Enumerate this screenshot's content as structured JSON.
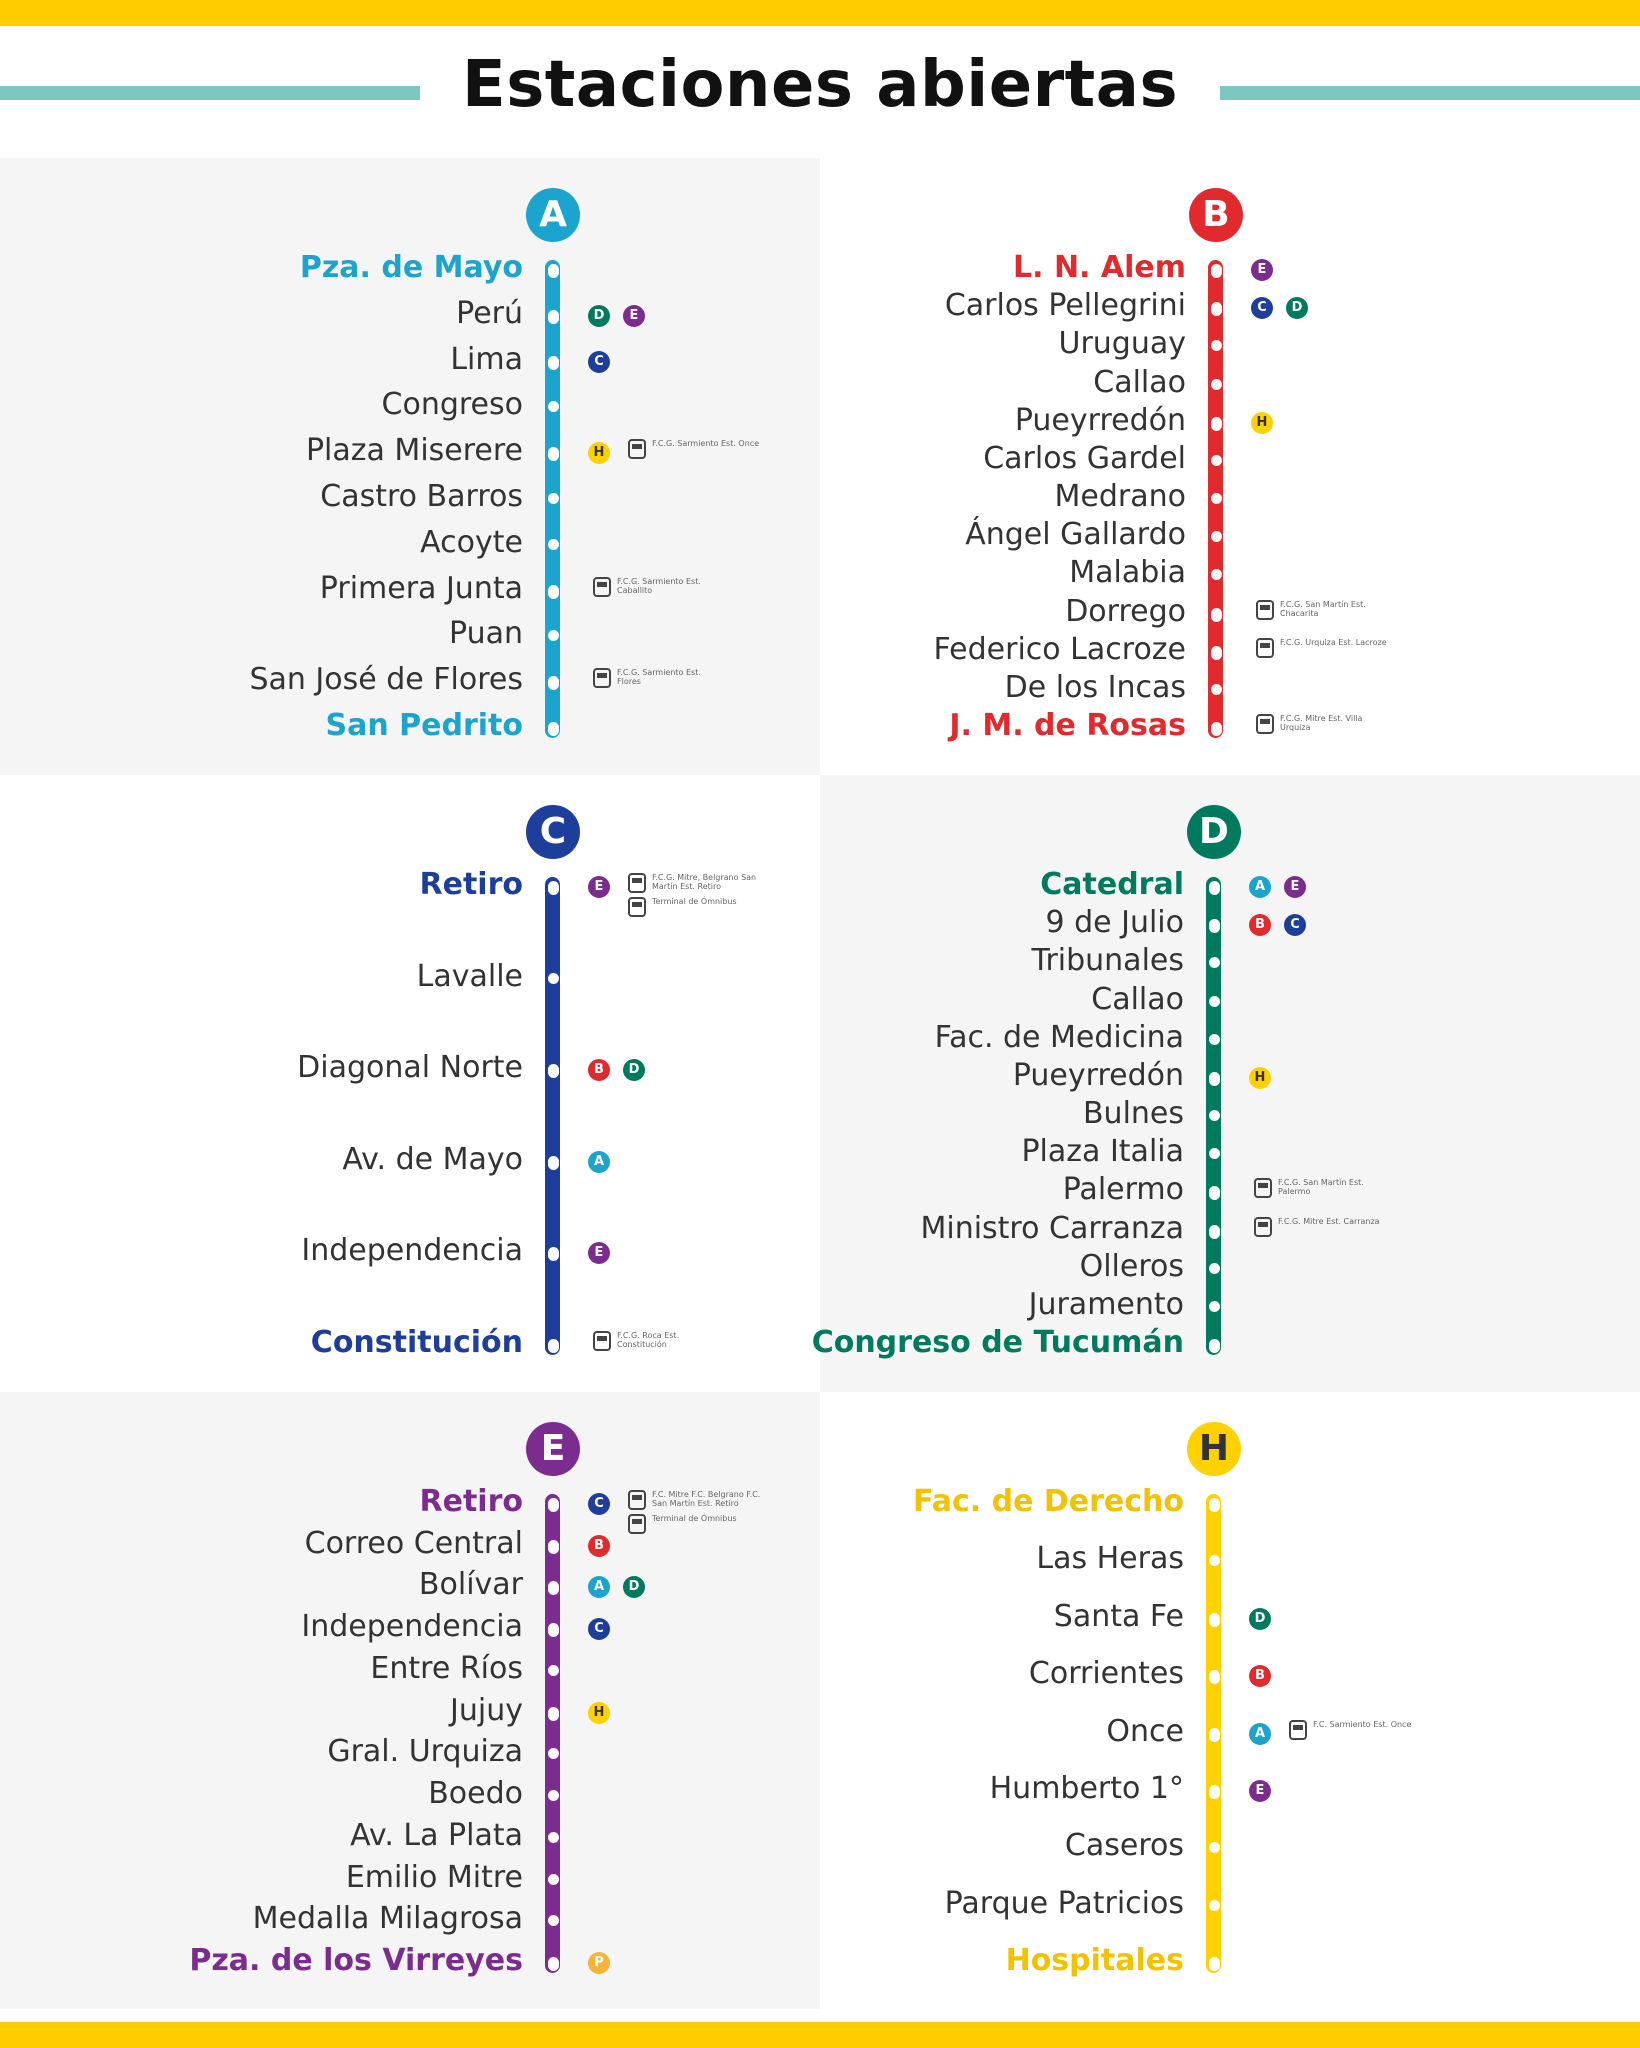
{
  "title": "Estaciones abiertas",
  "colors": {
    "yellow_bar": "#FFCD00",
    "rule": "#7CC8C0",
    "A": "#1AA4CE",
    "B": "#E12A2E",
    "C": "#1E3E9B",
    "D": "#007A5E",
    "E": "#7B2C8E",
    "H": "#FFD100",
    "P": "#F6B33A"
  },
  "lines": [
    {
      "id": "A",
      "badge": "A",
      "stations": [
        {
          "name": "Pza. de Mayo",
          "terminal": true
        },
        {
          "name": "Perú",
          "transfers": [
            "D",
            "E"
          ]
        },
        {
          "name": "Lima",
          "transfers": [
            "C"
          ]
        },
        {
          "name": "Congreso"
        },
        {
          "name": "Plaza Miserere",
          "transfers": [
            "H"
          ],
          "train": "F.C.G. Sarmiento Est. Once"
        },
        {
          "name": "Castro Barros"
        },
        {
          "name": "Acoyte"
        },
        {
          "name": "Primera Junta",
          "train": "F.C.G. Sarmiento Est. Caballito"
        },
        {
          "name": "Puan"
        },
        {
          "name": "San José de Flores",
          "train": "F.C.G. Sarmiento Est. Flores"
        },
        {
          "name": "San Pedrito",
          "terminal": true
        }
      ]
    },
    {
      "id": "B",
      "badge": "B",
      "stations": [
        {
          "name": "L. N. Alem",
          "terminal": true,
          "transfers": [
            "E"
          ]
        },
        {
          "name": "Carlos Pellegrini",
          "transfers": [
            "C",
            "D"
          ]
        },
        {
          "name": "Uruguay"
        },
        {
          "name": "Callao"
        },
        {
          "name": "Pueyrredón",
          "transfers": [
            "H"
          ]
        },
        {
          "name": "Carlos Gardel"
        },
        {
          "name": "Medrano"
        },
        {
          "name": "Ángel Gallardo"
        },
        {
          "name": "Malabia"
        },
        {
          "name": "Dorrego",
          "train": "F.C.G. San Martín Est. Chacarita"
        },
        {
          "name": "Federico Lacroze",
          "train": "F.C.G. Urquiza Est. Lacroze"
        },
        {
          "name": "De los Incas"
        },
        {
          "name": "J. M. de Rosas",
          "terminal": true,
          "train": "F.C.G. Mitre Est. Villa Urquiza"
        }
      ]
    },
    {
      "id": "C",
      "badge": "C",
      "stations": [
        {
          "name": "Retiro",
          "terminal": true,
          "transfers": [
            "E"
          ],
          "train": "F.C.G. Mitre, Belgrano San Martín Est. Retiro",
          "train2": "Terminal de Ómnibus"
        },
        {
          "name": "Lavalle"
        },
        {
          "name": "Diagonal Norte",
          "transfers": [
            "B",
            "D"
          ]
        },
        {
          "name": "Av. de Mayo",
          "transfers": [
            "A"
          ]
        },
        {
          "name": "Independencia",
          "transfers": [
            "E"
          ]
        },
        {
          "name": "Constitución",
          "terminal": true,
          "train": "F.C.G. Roca Est. Constitución"
        }
      ]
    },
    {
      "id": "D",
      "badge": "D",
      "stations": [
        {
          "name": "Catedral",
          "terminal": true,
          "transfers": [
            "A",
            "E"
          ]
        },
        {
          "name": "9 de Julio",
          "transfers": [
            "B",
            "C"
          ]
        },
        {
          "name": "Tribunales"
        },
        {
          "name": "Callao"
        },
        {
          "name": "Fac. de Medicina"
        },
        {
          "name": "Pueyrredón",
          "transfers": [
            "H"
          ]
        },
        {
          "name": "Bulnes"
        },
        {
          "name": "Plaza Italia"
        },
        {
          "name": "Palermo",
          "train": "F.C.G. San Martín Est. Palermo"
        },
        {
          "name": "Ministro Carranza",
          "train": "F.C.G. Mitre Est. Carranza"
        },
        {
          "name": "Olleros"
        },
        {
          "name": "Juramento"
        },
        {
          "name": "Congreso de Tucumán",
          "terminal": true
        }
      ]
    },
    {
      "id": "E",
      "badge": "E",
      "stations": [
        {
          "name": "Retiro",
          "terminal": true,
          "transfers": [
            "C"
          ],
          "train": "F.C. Mitre F.C. Belgrano F.C. San Martín Est. Retiro",
          "train2": "Terminal de Ómnibus"
        },
        {
          "name": "Correo Central",
          "transfers": [
            "B"
          ]
        },
        {
          "name": "Bolívar",
          "transfers": [
            "A",
            "D"
          ]
        },
        {
          "name": "Independencia",
          "transfers": [
            "C"
          ]
        },
        {
          "name": "Entre Ríos"
        },
        {
          "name": "Jujuy",
          "transfers": [
            "H"
          ]
        },
        {
          "name": "Gral. Urquiza"
        },
        {
          "name": "Boedo"
        },
        {
          "name": "Av. La Plata"
        },
        {
          "name": "Emilio Mitre"
        },
        {
          "name": "Medalla Milagrosa"
        },
        {
          "name": "Pza. de los Virreyes",
          "terminal": true,
          "transfers": [
            "P"
          ]
        }
      ]
    },
    {
      "id": "H",
      "badge": "H",
      "stations": [
        {
          "name": "Fac. de Derecho",
          "terminal": true
        },
        {
          "name": "Las Heras"
        },
        {
          "name": "Santa Fe",
          "transfers": [
            "D"
          ]
        },
        {
          "name": "Corrientes",
          "transfers": [
            "B"
          ]
        },
        {
          "name": "Once",
          "transfers": [
            "A"
          ],
          "train": "F.C. Sarmiento Est. Once"
        },
        {
          "name": "Humberto 1°",
          "transfers": [
            "E"
          ]
        },
        {
          "name": "Caseros"
        },
        {
          "name": "Parque Patricios"
        },
        {
          "name": "Hospitales",
          "terminal": true
        }
      ]
    }
  ]
}
